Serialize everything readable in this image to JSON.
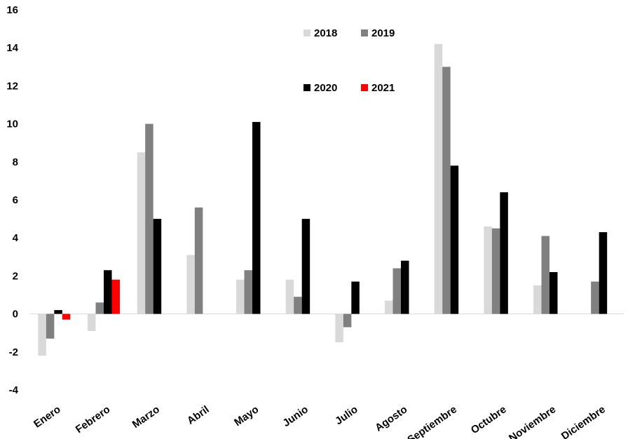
{
  "chart_data": {
    "type": "bar",
    "categories": [
      "Enero",
      "Febrero",
      "Marzo",
      "Abril",
      "Mayo",
      "Junio",
      "Julio",
      "Agosto",
      "Septiembre",
      "Octubre",
      "Noviembre",
      "Diciembre"
    ],
    "series": [
      {
        "name": "2018",
        "color": "#d9d9d9",
        "values": [
          -2.2,
          -0.9,
          8.5,
          3.1,
          1.8,
          1.8,
          -1.5,
          0.7,
          14.2,
          4.6,
          1.5,
          null
        ]
      },
      {
        "name": "2019",
        "color": "#808080",
        "values": [
          -1.3,
          0.6,
          10.0,
          5.6,
          2.3,
          0.9,
          -0.7,
          2.4,
          13.0,
          4.5,
          4.1,
          1.7
        ]
      },
      {
        "name": "2020",
        "color": "#000000",
        "values": [
          0.2,
          2.3,
          5.0,
          null,
          10.1,
          5.0,
          1.7,
          2.8,
          7.8,
          6.4,
          2.2,
          4.3
        ]
      },
      {
        "name": "2021",
        "color": "#ff0000",
        "values": [
          -0.3,
          1.8,
          null,
          null,
          null,
          null,
          null,
          null,
          null,
          null,
          null,
          null
        ]
      }
    ],
    "ylim": [
      -4,
      16
    ],
    "yticks": [
      "-4",
      "-2",
      "0",
      "2",
      "4",
      "6",
      "8",
      "10",
      "12",
      "14",
      "16"
    ],
    "grid": false,
    "legend_position": "top-center"
  }
}
